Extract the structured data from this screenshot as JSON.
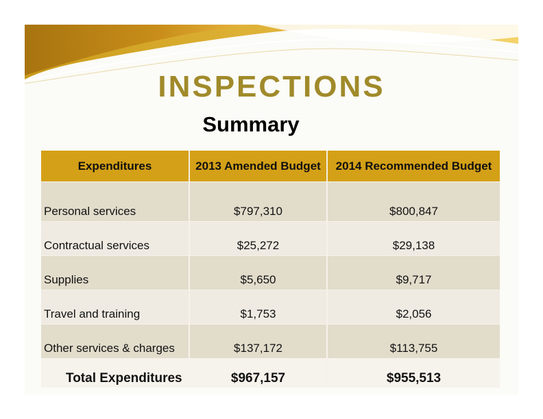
{
  "title": "INSPECTIONS",
  "subtitle": "Summary",
  "table": {
    "headers": [
      "Expenditures",
      "2013 Amended Budget",
      "2014 Recommended Budget"
    ],
    "rows": [
      {
        "label": "Personal services",
        "y2013": "$797,310",
        "y2014": "$800,847"
      },
      {
        "label": "Contractual services",
        "y2013": "$25,272",
        "y2014": "$29,138"
      },
      {
        "label": "Supplies",
        "y2013": "$5,650",
        "y2014": "$9,717"
      },
      {
        "label": "Travel and training",
        "y2013": "$1,753",
        "y2014": "$2,056"
      },
      {
        "label": "Other services & charges",
        "y2013": "$137,172",
        "y2014": "$113,755"
      }
    ],
    "total": {
      "label": "Total Expenditures",
      "y2013": "$967,157",
      "y2014": "$955,513"
    }
  },
  "colors": {
    "title": "#a08a2a",
    "header_fill": "#d4a017",
    "swoosh_dark": "#b8860b",
    "swoosh_light": "#f2c94c"
  }
}
